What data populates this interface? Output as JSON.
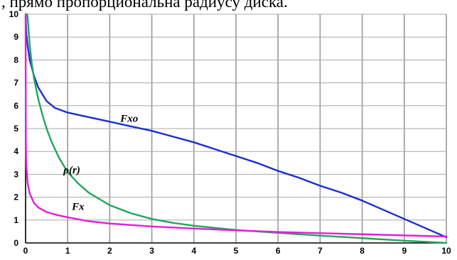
{
  "caption": ", прямо пропорциональна радиусу диска.",
  "chart_data": {
    "type": "line",
    "title": "",
    "xlabel": "",
    "ylabel": "",
    "xlim": [
      0,
      10
    ],
    "ylim": [
      0,
      10
    ],
    "x_ticks": [
      "0",
      "1",
      "2",
      "3",
      "4",
      "5",
      "6",
      "7",
      "8",
      "9",
      "10"
    ],
    "y_ticks": [
      "0",
      "1",
      "2",
      "3",
      "4",
      "5",
      "6",
      "7",
      "8",
      "9",
      "10"
    ],
    "grid": true,
    "series": [
      {
        "name": "Fxo",
        "color": "#1a2fd0",
        "x": [
          0,
          0.02,
          0.05,
          0.1,
          0.2,
          0.3,
          0.5,
          0.7,
          1,
          1.5,
          2,
          2.5,
          3,
          3.5,
          4,
          4.5,
          5,
          5.5,
          6,
          6.5,
          7,
          7.5,
          8,
          8.5,
          9,
          9.5,
          10
        ],
        "y": [
          9.9,
          9.1,
          8.6,
          8.0,
          7.3,
          6.8,
          6.2,
          5.9,
          5.7,
          5.5,
          5.3,
          5.1,
          4.9,
          4.65,
          4.4,
          4.1,
          3.8,
          3.5,
          3.15,
          2.85,
          2.5,
          2.2,
          1.85,
          1.45,
          1.05,
          0.65,
          0.25
        ]
      },
      {
        "name": "ρ(r)",
        "color": "#22a55a",
        "x": [
          0.04,
          0.06,
          0.1,
          0.15,
          0.2,
          0.3,
          0.4,
          0.5,
          0.6,
          0.8,
          1,
          1.25,
          1.5,
          2,
          2.5,
          3,
          3.5,
          4,
          5,
          6,
          7,
          8,
          9,
          10
        ],
        "y": [
          10.0,
          9.6,
          8.6,
          7.8,
          7.2,
          6.3,
          5.6,
          5.0,
          4.5,
          3.7,
          3.1,
          2.6,
          2.2,
          1.65,
          1.3,
          1.05,
          0.88,
          0.75,
          0.57,
          0.44,
          0.32,
          0.21,
          0.1,
          0.0
        ]
      },
      {
        "name": "Fx",
        "color": "#e020d8",
        "x": [
          0,
          0.005,
          0.01,
          0.02,
          0.05,
          0.1,
          0.2,
          0.3,
          0.5,
          0.75,
          1,
          1.5,
          2,
          3,
          4,
          5,
          6,
          7,
          8,
          9,
          10
        ],
        "y": [
          10.0,
          4.6,
          3.9,
          3.3,
          2.6,
          2.15,
          1.75,
          1.55,
          1.35,
          1.22,
          1.12,
          0.95,
          0.85,
          0.72,
          0.63,
          0.55,
          0.48,
          0.43,
          0.38,
          0.33,
          0.28
        ]
      }
    ],
    "annotations": [
      {
        "text": "Fxo",
        "x": 2.25,
        "y": 5.3
      },
      {
        "text": "ρ(r)",
        "x": 0.9,
        "y": 3.05
      },
      {
        "text": "Fx",
        "x": 1.1,
        "y": 1.45
      }
    ]
  }
}
